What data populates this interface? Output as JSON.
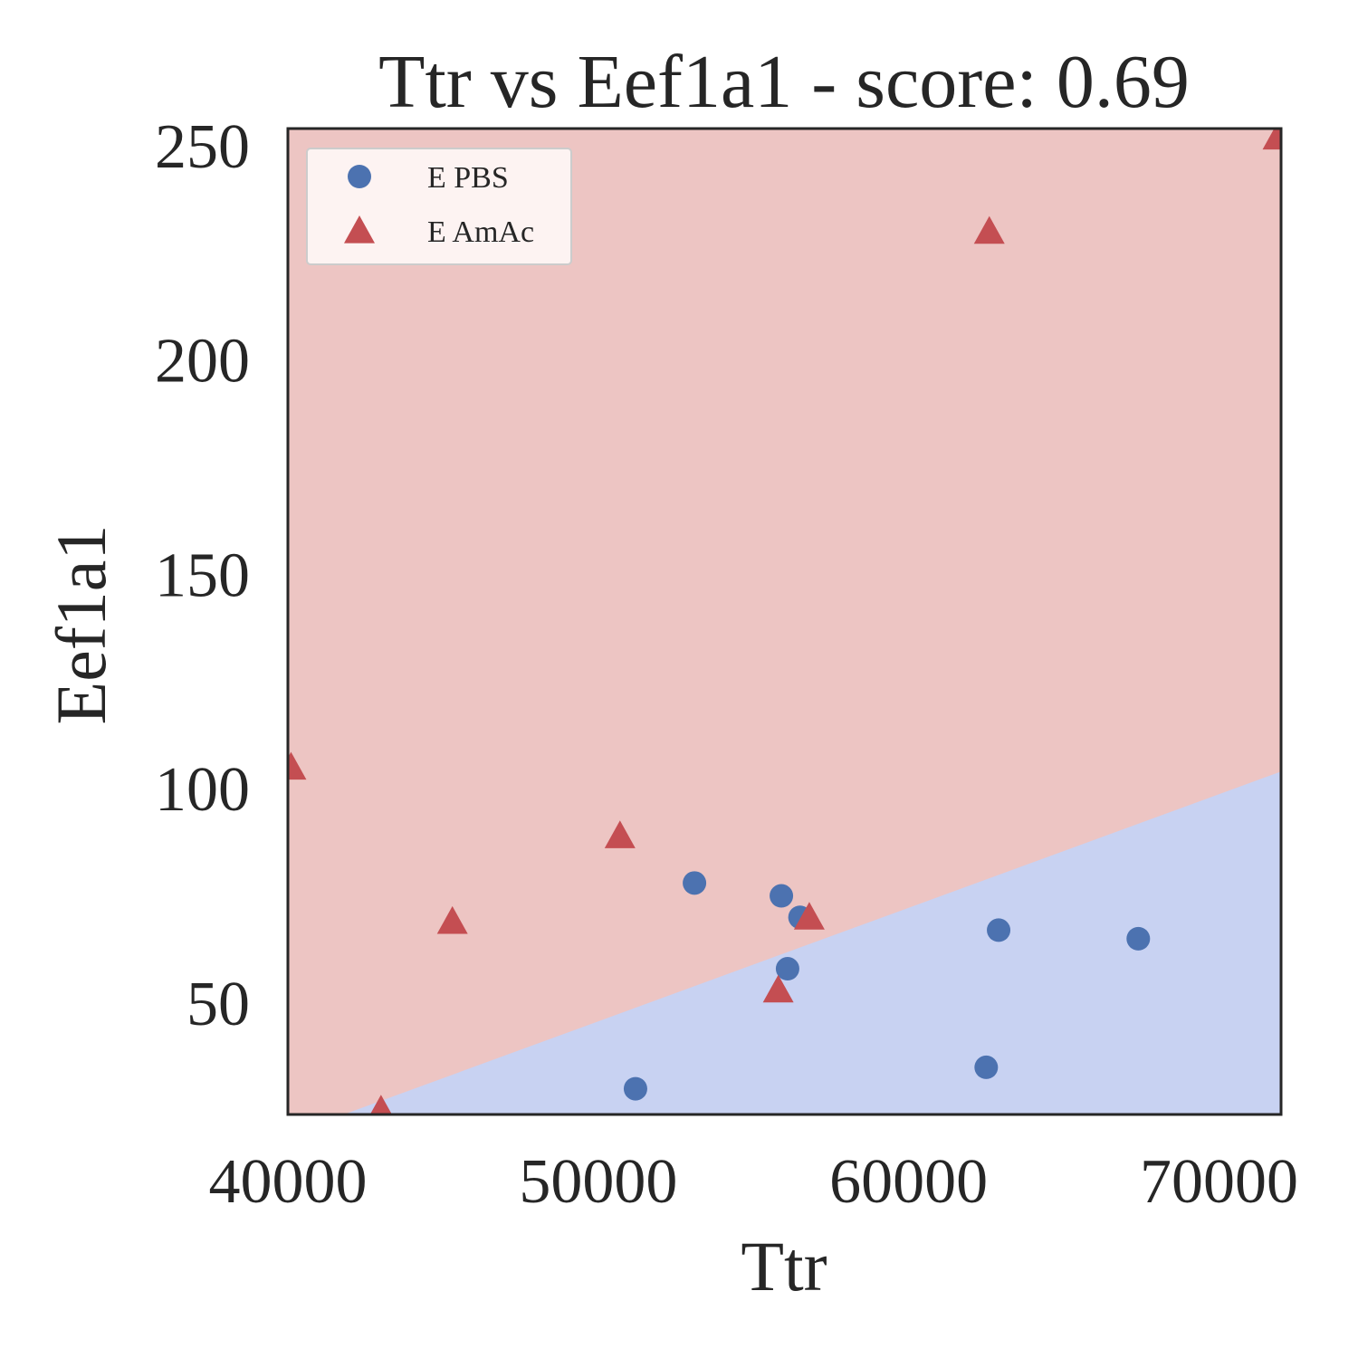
{
  "chart_data": {
    "type": "scatter",
    "title": "Ttr vs Eef1a1 - score: 0.69",
    "xlabel": "Ttr",
    "ylabel": "Eef1a1",
    "xlim": [
      40000,
      72000
    ],
    "ylim": [
      24,
      254
    ],
    "x_ticks": [
      40000,
      50000,
      60000,
      70000
    ],
    "x_tick_labels": [
      "40000",
      "50000",
      "60000",
      "70000"
    ],
    "y_ticks": [
      50,
      100,
      150,
      200,
      250
    ],
    "y_tick_labels": [
      "50",
      "100",
      "150",
      "200",
      "250"
    ],
    "grid": false,
    "legend_position": "top-left",
    "decision_boundary": {
      "points": [
        [
          41800,
          24
        ],
        [
          72000,
          104
        ]
      ],
      "region_above": "E AmAc",
      "region_below": "E PBS",
      "color_above": "#edc5c3",
      "color_below": "#c8d2f2"
    },
    "series": [
      {
        "name": "E PBS",
        "marker": "circle",
        "color": "#4c72b0",
        "points": [
          [
            51200,
            30
          ],
          [
            53100,
            78
          ],
          [
            55900,
            75
          ],
          [
            56500,
            70
          ],
          [
            56100,
            58
          ],
          [
            62500,
            35
          ],
          [
            62900,
            67
          ],
          [
            67400,
            65
          ]
        ]
      },
      {
        "name": "E AmAc",
        "marker": "triangle",
        "color": "#c44e52",
        "points": [
          [
            40100,
            105
          ],
          [
            43000,
            25
          ],
          [
            45300,
            69
          ],
          [
            50700,
            89
          ],
          [
            55800,
            53
          ],
          [
            56800,
            70
          ],
          [
            62600,
            230
          ],
          [
            71900,
            252
          ]
        ]
      }
    ]
  }
}
